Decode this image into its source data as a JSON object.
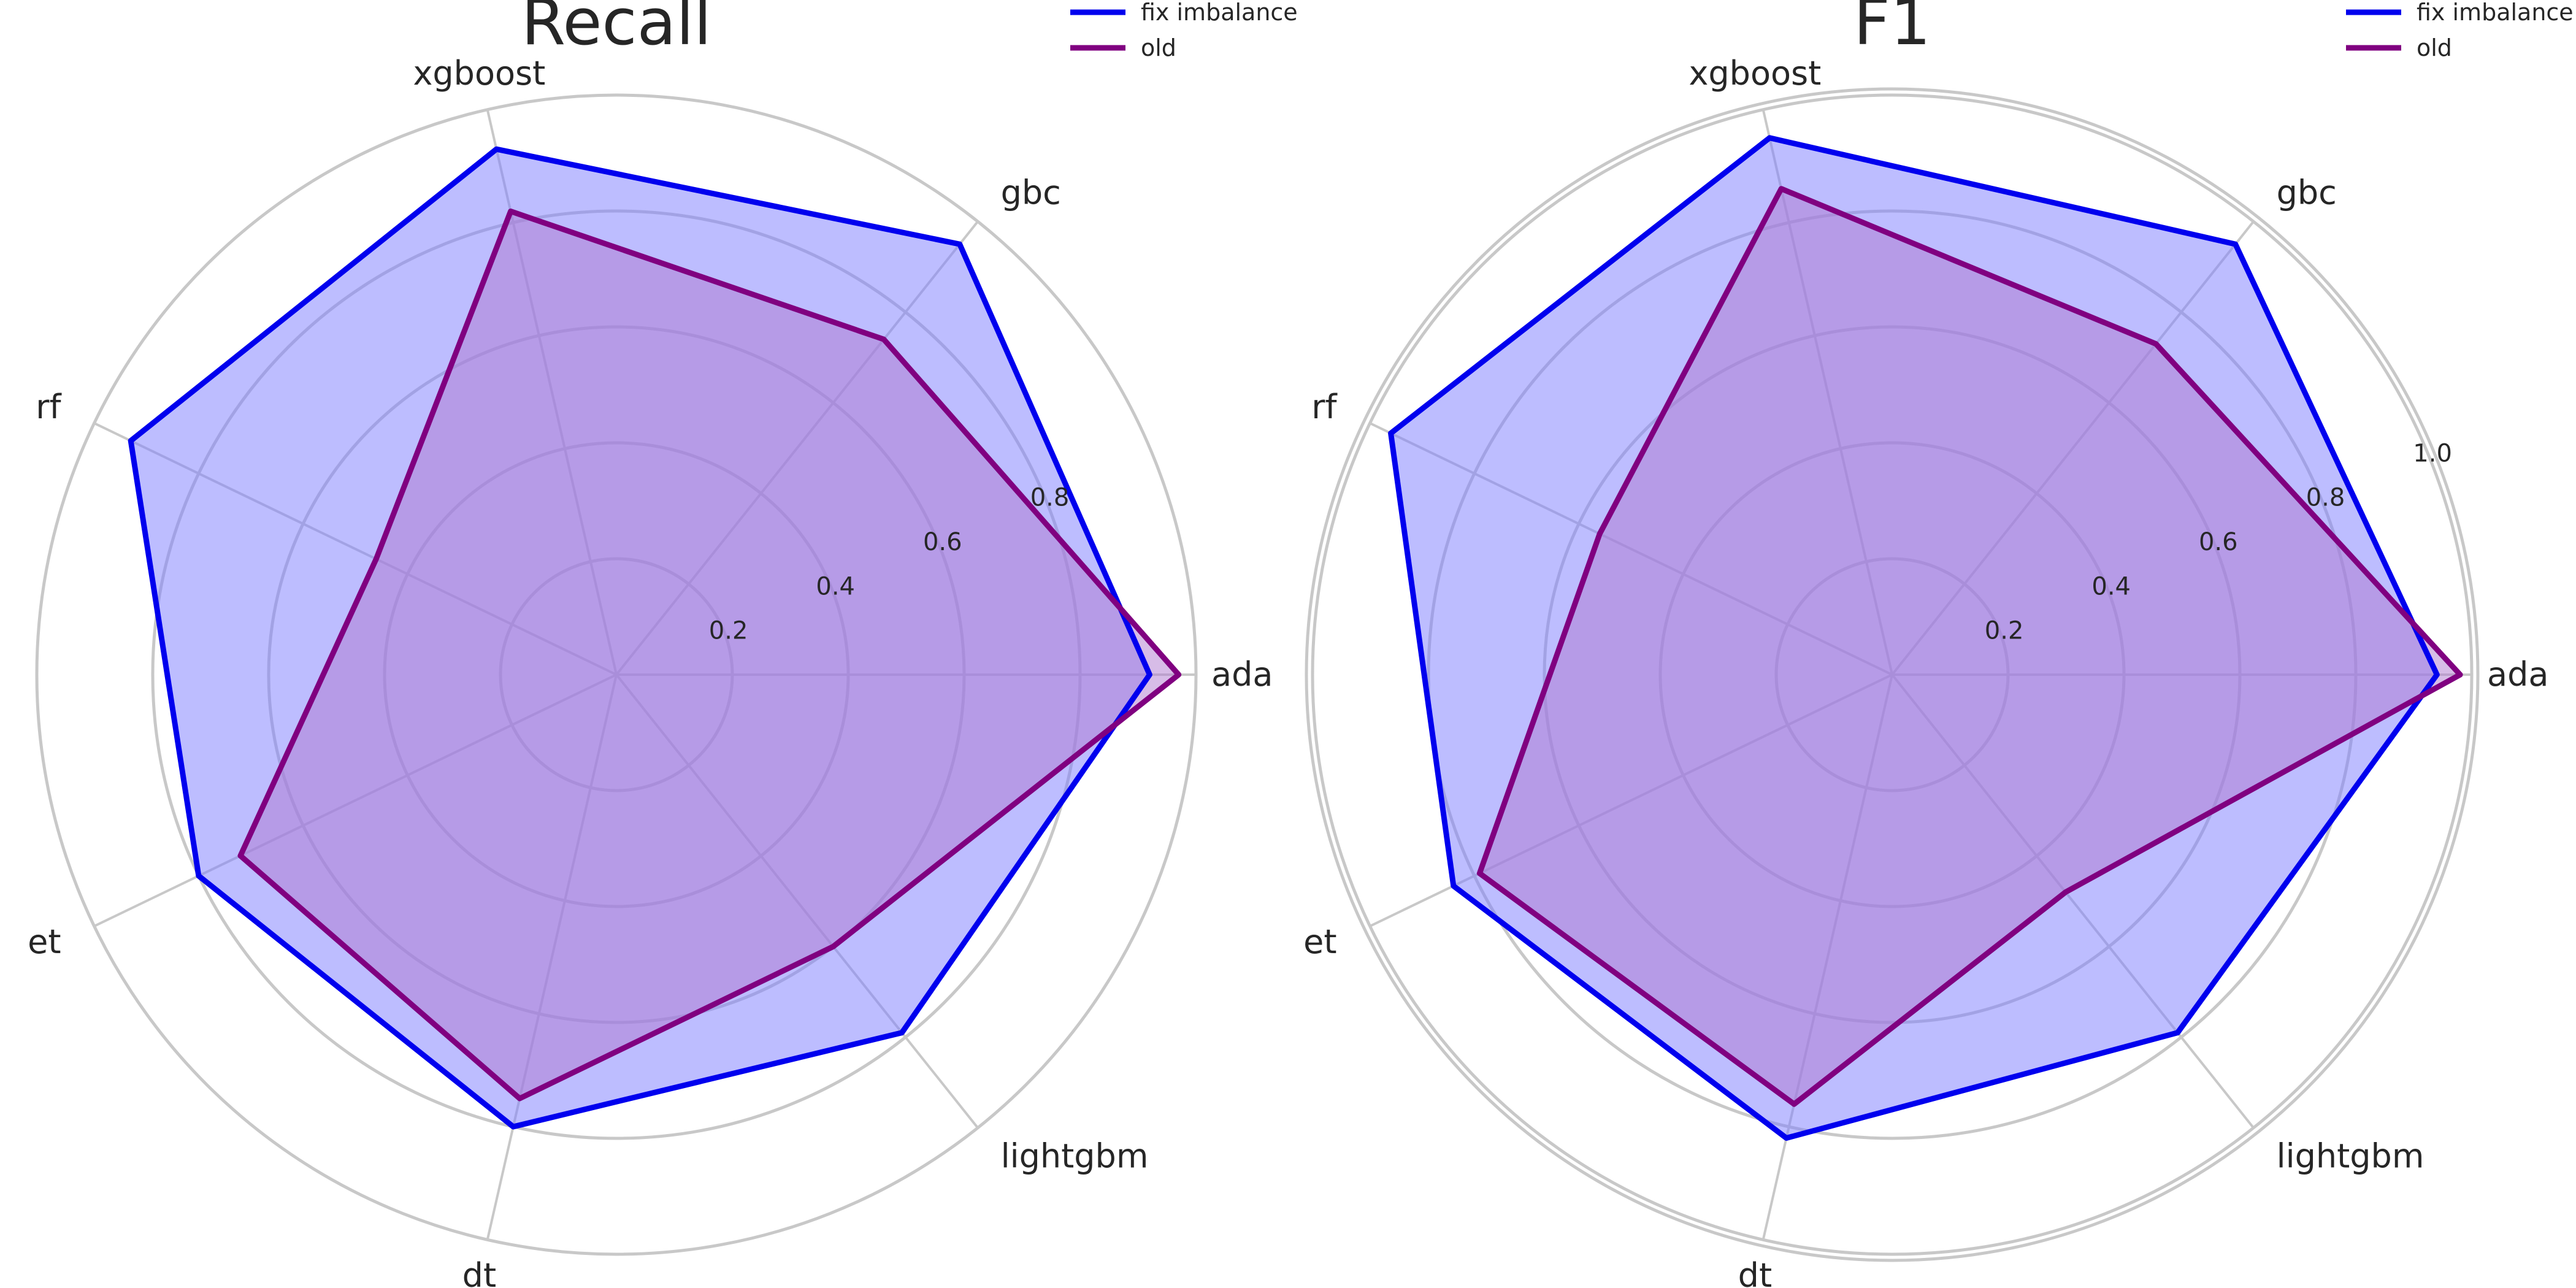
{
  "chart_data": [
    {
      "type": "radar",
      "title": "Recall",
      "categories": [
        "ada",
        "gbc",
        "xgboost",
        "rf",
        "et",
        "dt",
        "lightgbm"
      ],
      "rlim": [
        0,
        1.0
      ],
      "rticks": [
        "0.2",
        "0.4",
        "0.6",
        "0.8"
      ],
      "grid": true,
      "legend_position": "top-right",
      "series": [
        {
          "name": "fix imbalance",
          "color": "#0000ee",
          "fill": "#7b7bff",
          "values": [
            0.92,
            0.95,
            0.93,
            0.93,
            0.8,
            0.8,
            0.79
          ]
        },
        {
          "name": "old",
          "color": "#800080",
          "fill": "#b07ad0",
          "values": [
            0.97,
            0.74,
            0.82,
            0.46,
            0.72,
            0.75,
            0.6
          ]
        }
      ]
    },
    {
      "type": "radar",
      "title": "F1",
      "categories": [
        "ada",
        "gbc",
        "xgboost",
        "rf",
        "et",
        "dt",
        "lightgbm"
      ],
      "rlim": [
        0,
        1.0
      ],
      "rticks": [
        "0.2",
        "0.4",
        "0.6",
        "0.8",
        "1.0"
      ],
      "grid": true,
      "legend_position": "top-right",
      "series": [
        {
          "name": "fix imbalance",
          "color": "#0000ee",
          "fill": "#7b7bff",
          "values": [
            0.94,
            0.95,
            0.95,
            0.96,
            0.84,
            0.82,
            0.79
          ]
        },
        {
          "name": "old",
          "color": "#800080",
          "fill": "#b07ad0",
          "values": [
            0.98,
            0.73,
            0.86,
            0.56,
            0.79,
            0.76,
            0.48
          ]
        }
      ]
    }
  ]
}
